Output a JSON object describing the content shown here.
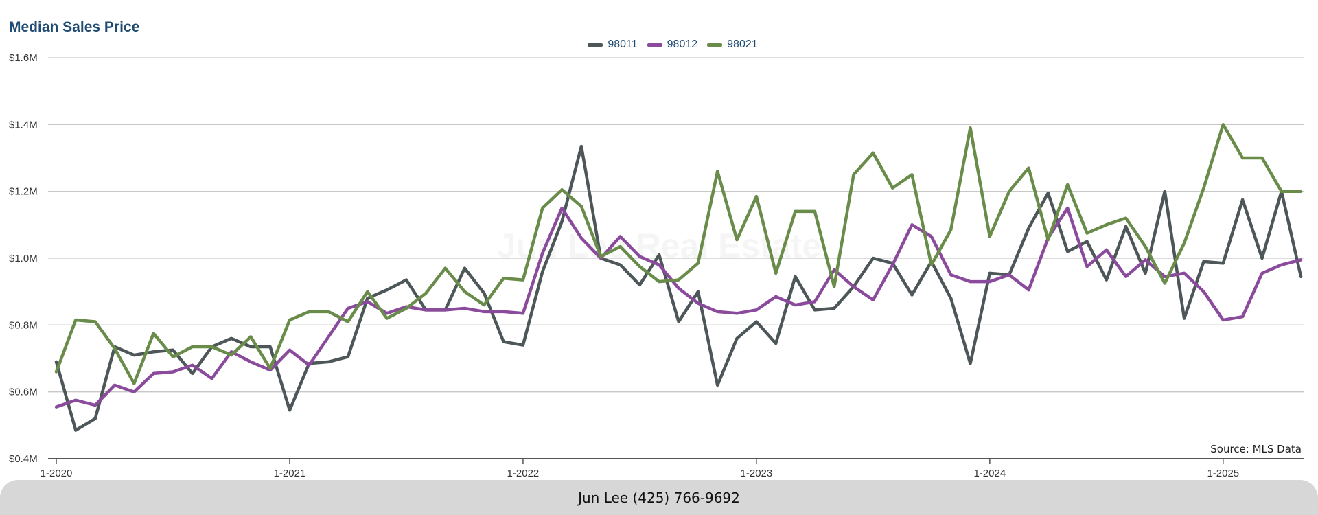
{
  "footer": {
    "contact": "Jun Lee (425) 766-9692"
  },
  "chart_data": {
    "type": "line",
    "title": "Median Sales Price",
    "source_note": "Source: MLS Data",
    "watermark": "Jun Lee Real Estate",
    "xlabel": "",
    "ylabel": "",
    "ylim": [
      400000,
      1600000
    ],
    "y_ticks": [
      400000,
      600000,
      800000,
      1000000,
      1200000,
      1400000,
      1600000
    ],
    "y_tick_labels": [
      "$0.4M",
      "$0.6M",
      "$0.8M",
      "$1.0M",
      "$1.2M",
      "$1.4M",
      "$1.6M"
    ],
    "x_tick_labels": [
      "1-2020",
      "1-2021",
      "1-2022",
      "1-2023",
      "1-2024",
      "1-2025"
    ],
    "x_tick_months": [
      0,
      12,
      24,
      36,
      48,
      60
    ],
    "months": [
      "1-2020",
      "2-2020",
      "3-2020",
      "4-2020",
      "5-2020",
      "6-2020",
      "7-2020",
      "8-2020",
      "9-2020",
      "10-2020",
      "11-2020",
      "12-2020",
      "1-2021",
      "2-2021",
      "3-2021",
      "4-2021",
      "5-2021",
      "6-2021",
      "7-2021",
      "8-2021",
      "9-2021",
      "10-2021",
      "11-2021",
      "12-2021",
      "1-2022",
      "2-2022",
      "3-2022",
      "4-2022",
      "5-2022",
      "6-2022",
      "7-2022",
      "8-2022",
      "9-2022",
      "10-2022",
      "11-2022",
      "12-2022",
      "1-2023",
      "2-2023",
      "3-2023",
      "4-2023",
      "5-2023",
      "6-2023",
      "7-2023",
      "8-2023",
      "9-2023",
      "10-2023",
      "11-2023",
      "12-2023",
      "1-2024",
      "2-2024",
      "3-2024",
      "4-2024",
      "5-2024",
      "6-2024",
      "7-2024",
      "8-2024",
      "9-2024",
      "10-2024",
      "11-2024",
      "12-2024",
      "1-2025",
      "2-2025",
      "3-2025",
      "4-2025",
      "5-2025"
    ],
    "grid": true,
    "legend_position": "top-center",
    "series": [
      {
        "name": "98011",
        "color": "#4d5658",
        "values": [
          690000,
          485000,
          520000,
          735000,
          710000,
          720000,
          725000,
          655000,
          735000,
          760000,
          735000,
          735000,
          545000,
          685000,
          690000,
          705000,
          880000,
          905000,
          935000,
          845000,
          845000,
          970000,
          895000,
          750000,
          740000,
          960000,
          1110000,
          1335000,
          1000000,
          980000,
          920000,
          1010000,
          810000,
          900000,
          620000,
          760000,
          810000,
          745000,
          945000,
          845000,
          850000,
          915000,
          1000000,
          985000,
          890000,
          990000,
          880000,
          685000,
          955000,
          950000,
          1090000,
          1195000,
          1020000,
          1050000,
          935000,
          1095000,
          955000,
          1200000,
          820000,
          990000,
          985000,
          1175000,
          1000000,
          1200000,
          945000
        ]
      },
      {
        "name": "98012",
        "color": "#8b4b9c",
        "values": [
          555000,
          575000,
          560000,
          620000,
          600000,
          655000,
          660000,
          680000,
          640000,
          720000,
          690000,
          665000,
          725000,
          680000,
          765000,
          850000,
          870000,
          835000,
          855000,
          845000,
          845000,
          850000,
          840000,
          840000,
          835000,
          1015000,
          1150000,
          1060000,
          1000000,
          1065000,
          1005000,
          980000,
          910000,
          865000,
          840000,
          835000,
          845000,
          885000,
          860000,
          870000,
          965000,
          915000,
          875000,
          980000,
          1100000,
          1065000,
          950000,
          930000,
          930000,
          950000,
          905000,
          1060000,
          1150000,
          975000,
          1025000,
          945000,
          995000,
          945000,
          955000,
          900000,
          815000,
          825000,
          955000,
          980000,
          995000
        ]
      },
      {
        "name": "98021",
        "color": "#6a8c4a",
        "values": [
          660000,
          815000,
          810000,
          730000,
          625000,
          775000,
          705000,
          735000,
          735000,
          710000,
          765000,
          670000,
          815000,
          840000,
          840000,
          810000,
          900000,
          820000,
          850000,
          895000,
          970000,
          900000,
          860000,
          940000,
          935000,
          1150000,
          1205000,
          1155000,
          1005000,
          1035000,
          975000,
          930000,
          935000,
          985000,
          1260000,
          1055000,
          1185000,
          955000,
          1140000,
          1140000,
          915000,
          1250000,
          1315000,
          1210000,
          1250000,
          980000,
          1085000,
          1390000,
          1065000,
          1200000,
          1270000,
          1055000,
          1220000,
          1075000,
          1100000,
          1120000,
          1035000,
          925000,
          1045000,
          1210000,
          1400000,
          1300000,
          1300000,
          1200000,
          1200000
        ]
      }
    ]
  }
}
